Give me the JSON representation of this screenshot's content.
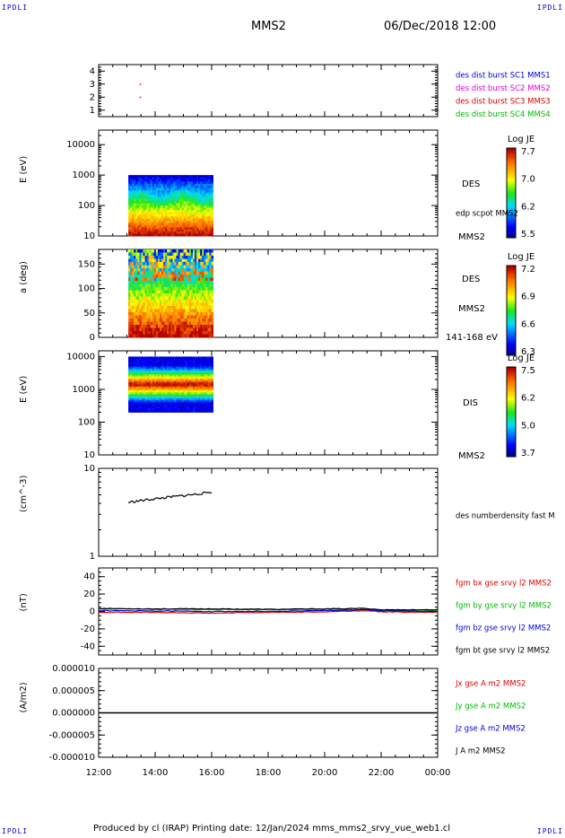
{
  "corner_labels": {
    "tl": "IPDLI",
    "tr": "IPDLI",
    "bl": "IPDLI",
    "br": "IPDLI"
  },
  "header": {
    "spacecraft": "MMS2",
    "datetime": "06/Dec/2018 12:00"
  },
  "footer": {
    "text": "Produced by cl (IRAP)   Printing date: 12/Jan/2024   mms_mms2_srvy_vue_web1.cl"
  },
  "colors": {
    "blue": "#0000dd",
    "magenta": "#dd00dd",
    "red": "#dd0000",
    "green": "#00bb00",
    "black": "#000000"
  },
  "time_axis": {
    "ticks": [
      "12:00",
      "14:00",
      "16:00",
      "18:00",
      "20:00",
      "22:00",
      "00:00"
    ],
    "range_hours": [
      12,
      24
    ]
  },
  "chart_data": [
    {
      "type": "scatter",
      "panel": "burst",
      "ylim": [
        0.5,
        4.5
      ],
      "yticks": [
        "1",
        "2",
        "3",
        "4"
      ],
      "legend": [
        "des dist burst SC1 MMS1",
        "des dist burst SC2 MMS2",
        "des dist burst SC3 MMS3",
        "des dist burst SC4 MMS4"
      ],
      "legend_colors": [
        "#0000dd",
        "#dd00dd",
        "#dd0000",
        "#00bb00"
      ],
      "points": [
        {
          "x": 13.45,
          "y": 3
        },
        {
          "x": 13.45,
          "y": 2
        }
      ]
    },
    {
      "type": "heatmap",
      "panel": "des_energy",
      "ylabel": "E (eV)",
      "yscale": "log",
      "ylim": [
        10,
        30000
      ],
      "yticks": [
        "10",
        "100",
        "1000",
        "10000"
      ],
      "x_range": [
        13.05,
        16.05
      ],
      "y_range": [
        10,
        1000
      ],
      "right_labels": [
        "DES",
        "edp scpot MMS2",
        "MMS2"
      ],
      "colorbar": {
        "title": "Log JE",
        "ticks": [
          "7.7",
          "7.0",
          "6.2",
          "5.5"
        ]
      }
    },
    {
      "type": "heatmap",
      "panel": "des_pitch",
      "ylabel": "a (deg)",
      "ylim": [
        0,
        180
      ],
      "yticks": [
        "0",
        "50",
        "100",
        "150"
      ],
      "x_range": [
        13.05,
        16.05
      ],
      "right_labels": [
        "DES",
        "MMS2",
        "141-168 eV"
      ],
      "colorbar": {
        "title": "Log JE",
        "ticks": [
          "7.2",
          "6.9",
          "6.6",
          "6.3"
        ]
      }
    },
    {
      "type": "heatmap",
      "panel": "dis_energy",
      "ylabel": "E (eV)",
      "yscale": "log",
      "ylim": [
        10,
        15000
      ],
      "yticks": [
        "10",
        "100",
        "1000",
        "10000"
      ],
      "x_range": [
        13.05,
        16.05
      ],
      "y_range": [
        200,
        10000
      ],
      "right_labels": [
        "DIS",
        "MMS2"
      ],
      "colorbar": {
        "title": "Log JE",
        "ticks": [
          "7.5",
          "6.2",
          "5.0",
          "3.7"
        ]
      }
    },
    {
      "type": "line",
      "panel": "density",
      "ylabel": "(cm^-3)",
      "yscale": "log",
      "ylim": [
        1,
        10
      ],
      "yticks": [
        "1",
        "10"
      ],
      "legend": [
        "des numberdensity fast M"
      ],
      "series": [
        {
          "x": [
            13.05,
            13.5,
            14.0,
            14.5,
            15.0,
            15.5,
            16.0
          ],
          "values": [
            4.1,
            4.3,
            4.5,
            4.7,
            4.9,
            5.1,
            5.4
          ]
        }
      ]
    },
    {
      "type": "line",
      "panel": "fgm",
      "ylabel": "(nT)",
      "ylim": [
        -50,
        50
      ],
      "yticks": [
        "40",
        "20",
        "0",
        "-20",
        "-40"
      ],
      "legend": [
        "fgm bx gse srvy l2 MMS2",
        "fgm by gse srvy l2 MMS2",
        "fgm bz gse srvy l2 MMS2",
        "fgm bt gse srvy l2 MMS2"
      ],
      "legend_colors": [
        "#dd0000",
        "#00bb00",
        "#0000dd",
        "#000000"
      ],
      "series": [
        {
          "x": [
            12,
            14,
            16,
            18,
            20,
            21.5,
            22,
            24
          ],
          "values": [
            -1,
            -1,
            -2,
            -1,
            -0.5,
            1,
            -0.5,
            -1
          ]
        },
        {
          "x": [
            12,
            14,
            16,
            18,
            20,
            21.5,
            22,
            24
          ],
          "values": [
            3,
            2.5,
            2,
            2,
            2.5,
            2,
            1.5,
            1
          ]
        },
        {
          "x": [
            12,
            14,
            16,
            18,
            20,
            21.5,
            22,
            24
          ],
          "values": [
            1,
            0.5,
            0,
            0,
            1,
            2,
            0.5,
            0
          ]
        },
        {
          "x": [
            12,
            14,
            16,
            18,
            20,
            21.5,
            22,
            24
          ],
          "values": [
            3.5,
            3,
            3,
            2.5,
            3,
            3.5,
            2,
            2
          ]
        }
      ]
    },
    {
      "type": "line",
      "panel": "current",
      "ylabel": "(A/m2)",
      "ylim": [
        -1e-05,
        1e-05
      ],
      "yticks": [
        "0.000010",
        "0.000005",
        "0.000000",
        "-0.000005",
        "-0.000010"
      ],
      "legend": [
        "Jx gse A m2 MMS2",
        "Jy gse A m2 MMS2",
        "Jz gse A m2 MMS2",
        "J A m2 MMS2"
      ],
      "legend_colors": [
        "#dd0000",
        "#00bb00",
        "#0000dd",
        "#000000"
      ],
      "series": [
        {
          "x": [
            12,
            24
          ],
          "values": [
            0,
            0
          ]
        }
      ]
    }
  ]
}
